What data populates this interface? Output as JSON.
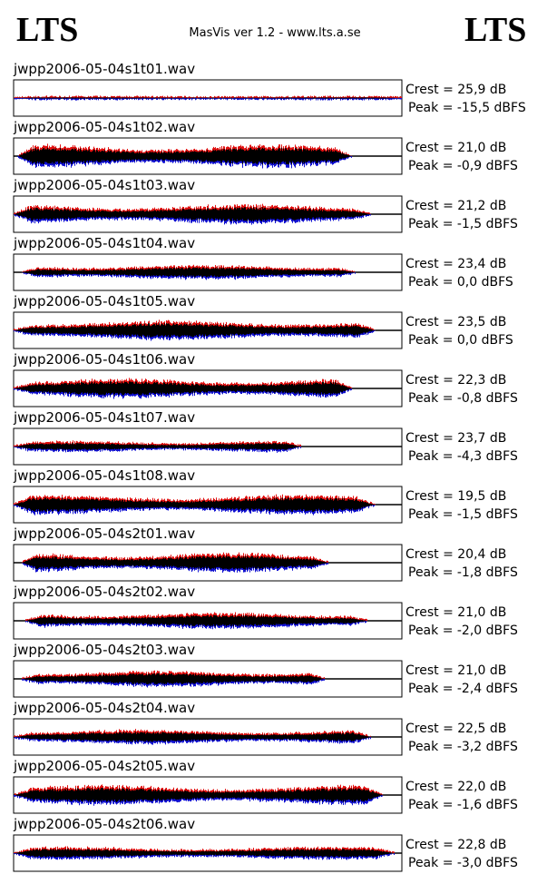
{
  "header": {
    "left_logo": "LTS",
    "center": "MasVis ver 1.2 - www.lts.a.se",
    "right_logo": "LTS"
  },
  "tracks": [
    {
      "file": "jwpp2006-05-04s1t01.wav",
      "crest": "Crest = 25,9 dB",
      "peak": "Peak = -15,5 dBFS"
    },
    {
      "file": "jwpp2006-05-04s1t02.wav",
      "crest": "Crest = 21,0 dB",
      "peak": "Peak = -0,9 dBFS"
    },
    {
      "file": "jwpp2006-05-04s1t03.wav",
      "crest": "Crest = 21,2 dB",
      "peak": "Peak = -1,5 dBFS"
    },
    {
      "file": "jwpp2006-05-04s1t04.wav",
      "crest": "Crest = 23,4 dB",
      "peak": "Peak = 0,0 dBFS"
    },
    {
      "file": "jwpp2006-05-04s1t05.wav",
      "crest": "Crest = 23,5 dB",
      "peak": "Peak = 0,0 dBFS"
    },
    {
      "file": "jwpp2006-05-04s1t06.wav",
      "crest": "Crest = 22,3 dB",
      "peak": "Peak = -0,8 dBFS"
    },
    {
      "file": "jwpp2006-05-04s1t07.wav",
      "crest": "Crest = 23,7 dB",
      "peak": "Peak = -4,3 dBFS"
    },
    {
      "file": "jwpp2006-05-04s1t08.wav",
      "crest": "Crest = 19,5 dB",
      "peak": "Peak = -1,5 dBFS"
    },
    {
      "file": "jwpp2006-05-04s2t01.wav",
      "crest": "Crest = 20,4 dB",
      "peak": "Peak = -1,8 dBFS"
    },
    {
      "file": "jwpp2006-05-04s2t02.wav",
      "crest": "Crest = 21,0 dB",
      "peak": "Peak = -2,0 dBFS"
    },
    {
      "file": "jwpp2006-05-04s2t03.wav",
      "crest": "Crest = 21,0 dB",
      "peak": "Peak = -2,4 dBFS"
    },
    {
      "file": "jwpp2006-05-04s2t04.wav",
      "crest": "Crest = 22,5 dB",
      "peak": "Peak = -3,2 dBFS"
    },
    {
      "file": "jwpp2006-05-04s2t05.wav",
      "crest": "Crest = 22,0 dB",
      "peak": "Peak = -1,6 dBFS"
    },
    {
      "file": "jwpp2006-05-04s2t06.wav",
      "crest": "Crest = 22,8 dB",
      "peak": "Peak = -3,0 dBFS"
    }
  ]
}
